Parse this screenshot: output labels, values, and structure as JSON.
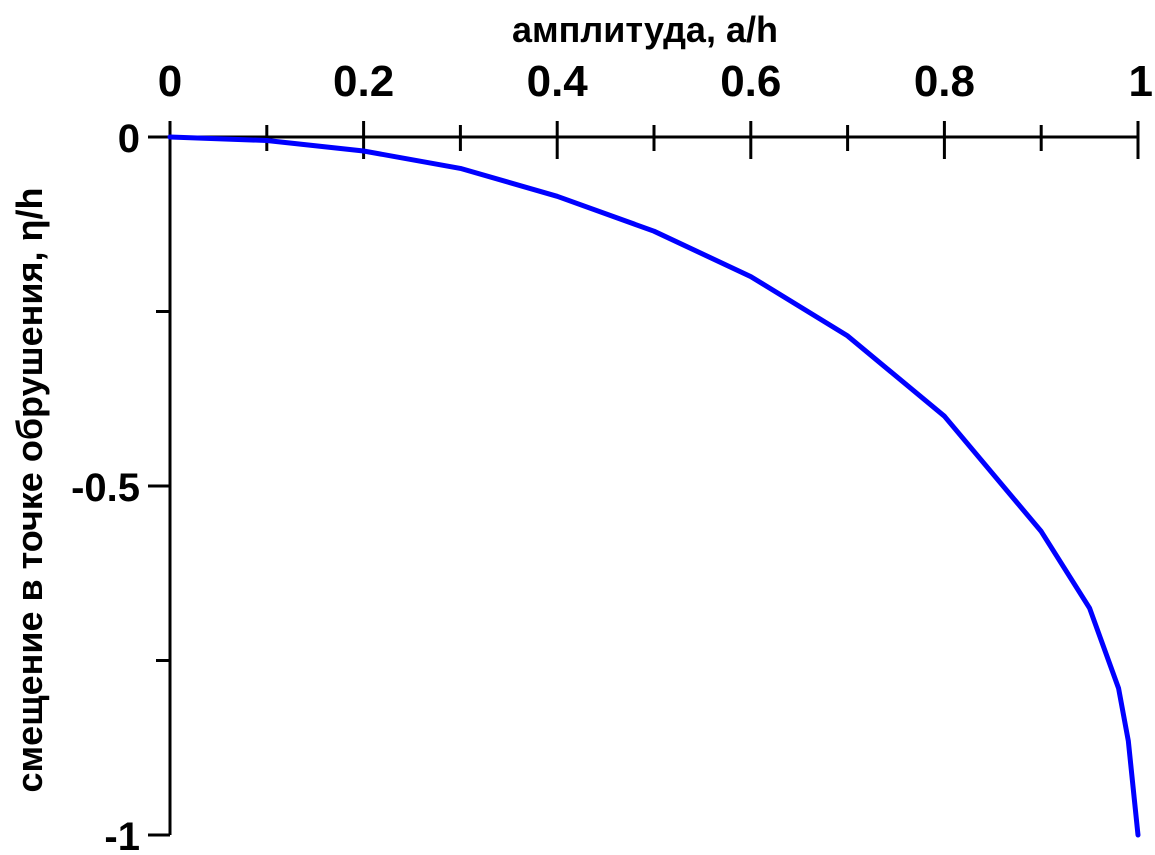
{
  "chart_data": {
    "type": "line",
    "xlabel": "амплитуда, a/h",
    "ylabel": "смещение в точке обрушения, η/h",
    "xlim": [
      0,
      1
    ],
    "ylim": [
      -1,
      0
    ],
    "x_axis_position": "top",
    "grid": false,
    "x_major_ticks": [
      0,
      0.2,
      0.4,
      0.6,
      0.8,
      1
    ],
    "x_tick_labels": [
      "0",
      "0.2",
      "0.4",
      "0.6",
      "0.8",
      "1"
    ],
    "x_minor_ticks": [
      0.1,
      0.3,
      0.5,
      0.7,
      0.9
    ],
    "y_major_ticks": [
      0,
      -0.5,
      -1
    ],
    "y_tick_labels": [
      "0",
      "-0.5",
      "-1"
    ],
    "y_minor_ticks": [
      -0.25,
      -0.75
    ],
    "series": [
      {
        "color": "#0000ff",
        "x": [
          0,
          0.1,
          0.2,
          0.3,
          0.4,
          0.5,
          0.6,
          0.7,
          0.8,
          0.9,
          0.95,
          0.98,
          0.99,
          1.0
        ],
        "y": [
          0,
          -0.005,
          -0.02,
          -0.045,
          -0.085,
          -0.135,
          -0.2,
          -0.285,
          -0.4,
          -0.565,
          -0.675,
          -0.79,
          -0.865,
          -1.0
        ]
      }
    ]
  }
}
